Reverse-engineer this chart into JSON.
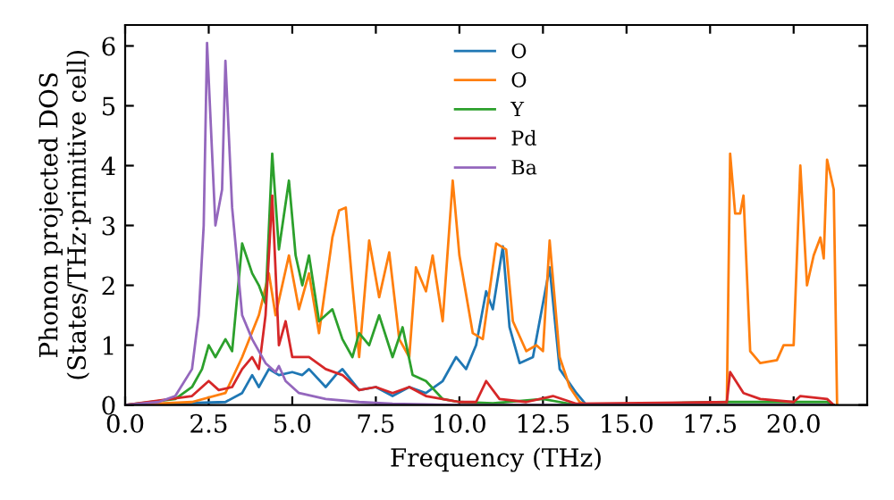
{
  "chart_data": {
    "type": "line",
    "xlabel": "Frequency (THz)",
    "ylabel": "Phonon projected DOS\n(States/THz·primitive cell)",
    "xlim": [
      0,
      22.2
    ],
    "ylim": [
      0,
      6.35
    ],
    "xticks": [
      {
        "value": 0,
        "label": "0.0"
      },
      {
        "value": 2.5,
        "label": "2.5"
      },
      {
        "value": 5,
        "label": "5.0"
      },
      {
        "value": 7.5,
        "label": "7.5"
      },
      {
        "value": 10,
        "label": "10.0"
      },
      {
        "value": 12.5,
        "label": "12.5"
      },
      {
        "value": 15,
        "label": "15.0"
      },
      {
        "value": 17.5,
        "label": "17.5"
      },
      {
        "value": 20,
        "label": "20.0"
      }
    ],
    "yticks": [
      0,
      1,
      2,
      3,
      4,
      5,
      6
    ],
    "legend": "top",
    "grid": false,
    "series": [
      {
        "name": "O",
        "color": "#1f77b4",
        "x": [
          0,
          3,
          3.5,
          3.8,
          4.0,
          4.3,
          4.6,
          5.0,
          5.3,
          5.5,
          6.0,
          6.3,
          6.5,
          7.0,
          7.5,
          8.0,
          8.5,
          9.0,
          9.5,
          9.9,
          10.2,
          10.5,
          10.8,
          11.0,
          11.3,
          11.5,
          11.8,
          12.2,
          12.7,
          13.0,
          13.5,
          13.8,
          21.2
        ],
        "values": [
          0,
          0.05,
          0.2,
          0.5,
          0.3,
          0.6,
          0.5,
          0.55,
          0.5,
          0.6,
          0.3,
          0.5,
          0.6,
          0.25,
          0.3,
          0.15,
          0.3,
          0.2,
          0.4,
          0.8,
          0.6,
          1.0,
          1.9,
          1.6,
          2.65,
          1.3,
          0.7,
          0.8,
          2.3,
          0.6,
          0.2,
          0,
          0
        ]
      },
      {
        "name": "O",
        "color": "#ff7f0e",
        "x": [
          0,
          2,
          3,
          3.5,
          4,
          4.3,
          4.5,
          4.9,
          5.2,
          5.5,
          5.8,
          6.2,
          6.4,
          6.6,
          6.8,
          7.0,
          7.3,
          7.6,
          7.9,
          8.2,
          8.5,
          8.7,
          9.0,
          9.2,
          9.5,
          9.8,
          10.0,
          10.4,
          10.7,
          10.9,
          11.1,
          11.4,
          11.6,
          12.0,
          12.3,
          12.5,
          12.7,
          13.0,
          13.3,
          13.6,
          13.8,
          18,
          18.1,
          18.25,
          18.4,
          18.5,
          18.7,
          19,
          19.5,
          19.7,
          20.0,
          20.2,
          20.4,
          20.6,
          20.8,
          20.9,
          21.0,
          21.2,
          21.3
        ],
        "values": [
          0,
          0.05,
          0.2,
          0.8,
          1.5,
          2.2,
          1.5,
          2.5,
          1.6,
          2.2,
          1.2,
          2.8,
          3.25,
          3.3,
          2.0,
          0.8,
          2.75,
          1.8,
          2.55,
          1.1,
          0.8,
          2.3,
          1.9,
          2.5,
          1.4,
          3.75,
          2.5,
          1.2,
          1.1,
          1.9,
          2.7,
          2.6,
          1.4,
          0.9,
          1.0,
          0.9,
          2.75,
          0.8,
          0.3,
          0.05,
          0,
          0,
          4.2,
          3.2,
          3.2,
          3.5,
          0.9,
          0.7,
          0.75,
          1.0,
          1.0,
          4.0,
          2.0,
          2.5,
          2.8,
          2.45,
          4.1,
          3.6,
          0
        ]
      },
      {
        "name": "Y",
        "color": "#2ca02c",
        "x": [
          0,
          1.5,
          2,
          2.3,
          2.5,
          2.7,
          3.0,
          3.2,
          3.5,
          3.8,
          4.0,
          4.2,
          4.4,
          4.6,
          4.9,
          5.1,
          5.3,
          5.5,
          5.8,
          6.0,
          6.2,
          6.5,
          6.8,
          7.0,
          7.3,
          7.6,
          8.0,
          8.3,
          8.6,
          9.0,
          9.5,
          10.0,
          11,
          12.5,
          13,
          13.5,
          18,
          21,
          21.2
        ],
        "values": [
          0,
          0.1,
          0.3,
          0.6,
          1.0,
          0.8,
          1.1,
          0.9,
          2.7,
          2.2,
          2.0,
          1.7,
          4.2,
          2.6,
          3.75,
          2.5,
          2.0,
          2.5,
          1.4,
          1.5,
          1.6,
          1.1,
          0.8,
          1.2,
          1.0,
          1.5,
          0.8,
          1.3,
          0.5,
          0.4,
          0.1,
          0.05,
          0.03,
          0.1,
          0.05,
          0,
          0.05,
          0.05,
          0
        ]
      },
      {
        "name": "Pd",
        "color": "#d62728",
        "x": [
          0,
          2,
          2.5,
          2.8,
          3.2,
          3.5,
          3.8,
          4.0,
          4.2,
          4.4,
          4.6,
          4.8,
          5.0,
          5.5,
          6.0,
          6.5,
          7.0,
          7.5,
          8.0,
          8.5,
          9.0,
          10,
          10.5,
          10.8,
          11.2,
          12,
          12.8,
          13.5,
          18,
          18.1,
          18.5,
          19,
          20,
          20.2,
          21,
          21.2
        ],
        "values": [
          0,
          0.15,
          0.4,
          0.25,
          0.3,
          0.6,
          0.8,
          0.6,
          1.5,
          3.5,
          1.0,
          1.4,
          0.8,
          0.8,
          0.6,
          0.5,
          0.25,
          0.3,
          0.2,
          0.3,
          0.15,
          0.05,
          0.05,
          0.4,
          0.1,
          0.05,
          0.15,
          0.02,
          0.05,
          0.55,
          0.2,
          0.1,
          0.05,
          0.15,
          0.1,
          0
        ]
      },
      {
        "name": "Ba",
        "color": "#9467bd",
        "x": [
          0,
          1,
          1.5,
          2,
          2.2,
          2.35,
          2.45,
          2.7,
          2.9,
          3.0,
          3.2,
          3.5,
          3.8,
          4.2,
          4.5,
          4.6,
          4.8,
          5.2,
          6,
          7,
          8,
          10,
          21
        ],
        "values": [
          0,
          0.05,
          0.15,
          0.6,
          1.5,
          3,
          6.05,
          3.0,
          3.6,
          5.75,
          3.3,
          1.5,
          1.1,
          0.7,
          0.55,
          0.65,
          0.4,
          0.2,
          0.1,
          0.05,
          0.02,
          0,
          0
        ]
      }
    ]
  }
}
